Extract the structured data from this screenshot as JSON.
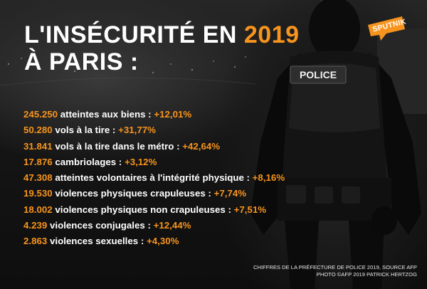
{
  "title": {
    "line1": "L'insécurité en ",
    "year": "2019",
    "line2": "à Paris :"
  },
  "stats": [
    {
      "number": "245.250",
      "label": "atteintes aux biens :",
      "change": "+12,01%"
    },
    {
      "number": "50.280",
      "label": "vols à la tire :",
      "change": "+31,77%"
    },
    {
      "number": "31.841",
      "label": "vols à la tire dans le métro :",
      "change": "+42,64%"
    },
    {
      "number": "17.876",
      "label": "cambriolages :",
      "change": "+3,12%"
    },
    {
      "number": "47.308",
      "label": "atteintes volontaires à l'intégrité physique :",
      "change": "+8,16%"
    },
    {
      "number": "19.530",
      "label": "violences physiques crapuleuses :",
      "change": "+7,74%"
    },
    {
      "number": "18.002",
      "label": "violences physiques non crapuleuses :",
      "change": "+7,51%"
    },
    {
      "number": "4.239",
      "label": "violences conjugales :",
      "change": "+12,44%"
    },
    {
      "number": "2.863",
      "label": "violences sexuelles :",
      "change": "+4,30%"
    }
  ],
  "logo": {
    "text": "Sputnik"
  },
  "vest_label": "POLICE",
  "credits": {
    "line1": "Chiffres de la Préfecture de Police 2019, source AFP",
    "line2": "Photo ©AFP 2019 Patrick Hertzog"
  },
  "colors": {
    "accent": "#f7941d",
    "text": "#ffffff",
    "background": "#1a1a1a"
  },
  "icons": [
    "sputnik-logo-icon",
    "police-officer-photo"
  ]
}
